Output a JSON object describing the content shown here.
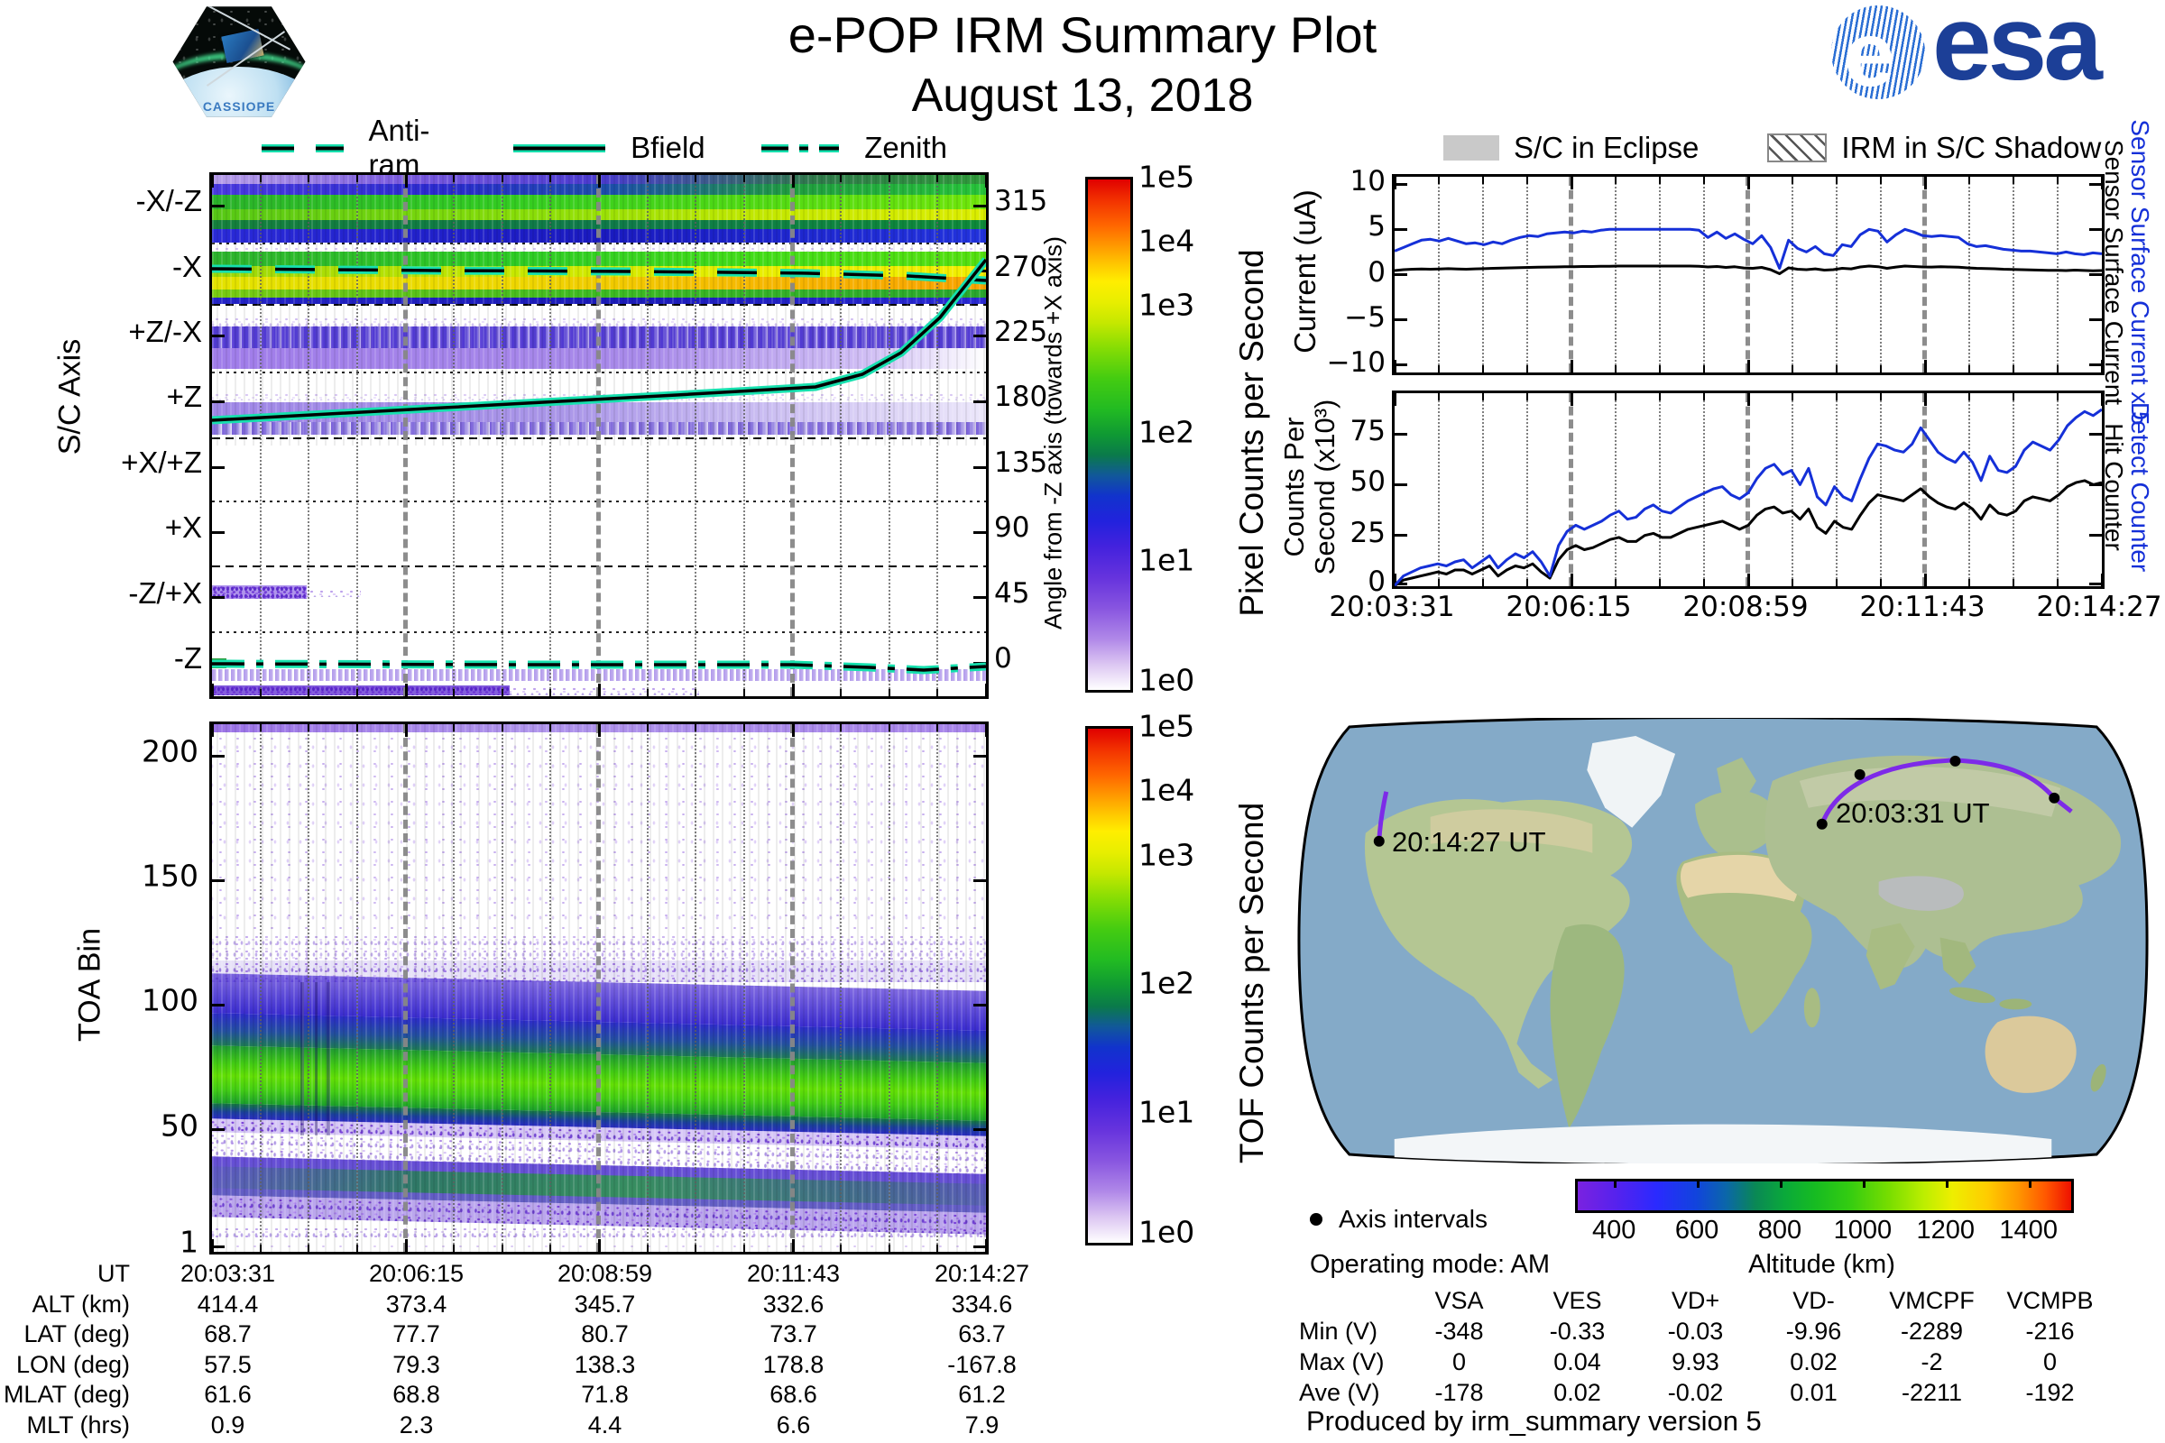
{
  "header": {
    "title_line1": "e-POP IRM Summary Plot",
    "title_line2": "August 13, 2018",
    "cassiope_label": "CASSIOPE",
    "esa_label": "esa"
  },
  "legend_left": {
    "anti_ram": "Anti-ram",
    "bfield": "Bfield",
    "zenith": "Zenith"
  },
  "legend_right": {
    "eclipse": "S/C in Eclipse",
    "shadow": "IRM in S/C Shadow"
  },
  "colors": {
    "accent_teal": "#16e0ae",
    "series_blue": "#1530d8",
    "series_black": "#000000",
    "track_purple": "#7d2ae8",
    "eclipse_gray": "#c9c9c9",
    "navy_esa": "#1c3f97"
  },
  "spec1": {
    "y_axis_label": "S/C Axis",
    "y_labels": [
      "-X/-Z",
      "-X",
      "+Z/-X",
      "+Z",
      "+X/+Z",
      "+X",
      "-Z/+X",
      "-Z"
    ],
    "angle_axis_label": "Angle from -Z axis (towards +X axis)",
    "angle_ticks": [
      "315",
      "270",
      "225",
      "180",
      "135",
      "90",
      "45",
      "0"
    ],
    "colorbar_label": "Pixel Counts per Second",
    "colorbar_ticks": [
      "1e5",
      "1e4",
      "1e3",
      "1e2",
      "1e1",
      "1e0"
    ]
  },
  "spec2": {
    "y_axis_label": "TOA Bin",
    "y_ticks": [
      "200",
      "150",
      "100",
      "50",
      "1"
    ],
    "colorbar_label": "TOF Counts per Second",
    "colorbar_ticks": [
      "1e5",
      "1e4",
      "1e3",
      "1e2",
      "1e1",
      "1e0"
    ]
  },
  "plots": {
    "current": {
      "ylabel": "Current (uA)",
      "yticks": [
        "10",
        "5",
        "0",
        "−5",
        "−10"
      ],
      "right_label_blue": "Sensor Surface Current x 5",
      "right_label_black": "Sensor Surface Current"
    },
    "counts": {
      "ylabel_line1": "Counts Per",
      "ylabel_line2": "Second (x10³)",
      "yticks": [
        "75",
        "50",
        "25",
        "0"
      ],
      "right_label_blue": "Detect Counter",
      "right_label_black": "Hit Counter"
    },
    "x_ticklabels": [
      "20:03:31",
      "20:06:15",
      "20:08:59",
      "20:11:43",
      "20:14:27"
    ]
  },
  "map": {
    "start_label": "20:03:31 UT",
    "end_label": "20:14:27 UT"
  },
  "below_map": {
    "axis_intervals": "Axis intervals",
    "operating_mode": "Operating mode: AM",
    "altitude_label": "Altitude (km)",
    "altitude_ticks": [
      "400",
      "600",
      "800",
      "1000",
      "1200",
      "1400"
    ]
  },
  "table_left": {
    "rows": [
      {
        "label": "UT",
        "values": [
          "20:03:31",
          "20:06:15",
          "20:08:59",
          "20:11:43",
          "20:14:27"
        ]
      },
      {
        "label": "ALT (km)",
        "values": [
          "414.4",
          "373.4",
          "345.7",
          "332.6",
          "334.6"
        ]
      },
      {
        "label": "LAT (deg)",
        "values": [
          "68.7",
          "77.7",
          "80.7",
          "73.7",
          "63.7"
        ]
      },
      {
        "label": "LON (deg)",
        "values": [
          "57.5",
          "79.3",
          "138.3",
          "178.8",
          "-167.8"
        ]
      },
      {
        "label": "MLAT (deg)",
        "values": [
          "61.6",
          "68.8",
          "71.8",
          "68.6",
          "61.2"
        ]
      },
      {
        "label": "MLT (hrs)",
        "values": [
          "0.9",
          "2.3",
          "4.4",
          "6.6",
          "7.9"
        ]
      }
    ]
  },
  "voltage_table": {
    "columns": [
      "VSA",
      "VES",
      "VD+",
      "VD-",
      "VMCPF",
      "VCMPB"
    ],
    "rows": [
      {
        "label": "Min (V)",
        "values": [
          "-348",
          "-0.33",
          "-0.03",
          "-9.96",
          "-2289",
          "-216"
        ]
      },
      {
        "label": "Max (V)",
        "values": [
          "0",
          "0.04",
          "9.93",
          "0.02",
          "-2",
          "0"
        ]
      },
      {
        "label": "Ave (V)",
        "values": [
          "-178",
          "0.02",
          "-0.02",
          "0.01",
          "-2211",
          "-192"
        ]
      }
    ]
  },
  "footer": {
    "produced_by": "Produced by irm_summary version 5"
  },
  "chart_data": [
    {
      "type": "line",
      "name": "sensor-surface-current",
      "ylabel": "Current (uA)",
      "ylim": [
        -10.8,
        10.8
      ],
      "yticks": [
        10,
        5,
        0,
        -5,
        -10
      ],
      "x_ticklabels": [
        "20:03:31",
        "20:06:15",
        "20:08:59",
        "20:11:43",
        "20:14:27"
      ],
      "grid": "vertical dotted minors every 1/16, heavy dashed at 1/4, 1/2, 3/4",
      "series": [
        {
          "name": "Sensor Surface Current",
          "color": "#000000",
          "values": [
            0.45,
            0.55,
            0.6,
            0.62,
            0.6,
            0.63,
            0.66,
            0.63,
            0.6,
            0.64,
            0.66,
            0.7,
            0.72,
            0.75,
            0.78,
            0.8,
            0.82,
            0.84,
            0.85,
            0.87,
            0.88,
            0.9,
            0.9,
            0.92,
            0.93,
            0.95,
            0.95,
            0.95,
            0.95,
            0.95,
            0.95,
            0.95,
            0.95,
            0.95,
            0.93,
            0.85,
            0.9,
            0.8,
            0.87,
            0.74,
            0.7,
            0.8,
            0.55,
            0.1,
            0.75,
            0.6,
            0.55,
            0.64,
            0.5,
            0.55,
            0.7,
            0.64,
            0.85,
            0.95,
            0.88,
            0.7,
            0.84,
            0.95,
            0.9,
            0.85,
            0.84,
            0.87,
            0.85,
            0.82,
            0.75,
            0.7,
            0.68,
            0.65,
            0.6,
            0.58,
            0.55,
            0.52,
            0.5,
            0.48,
            0.47,
            0.45,
            0.5,
            0.46,
            0.43,
            0.45
          ]
        },
        {
          "name": "Sensor Surface Current x 5",
          "color": "#1530d8",
          "values": [
            2.6,
            3.0,
            3.4,
            3.8,
            3.9,
            3.7,
            4.0,
            3.7,
            3.4,
            3.5,
            3.3,
            3.6,
            3.4,
            3.8,
            4.1,
            4.3,
            4.2,
            4.5,
            4.6,
            4.7,
            4.6,
            4.8,
            4.7,
            4.9,
            5.0,
            5.0,
            5.0,
            5.0,
            5.0,
            5.0,
            5.0,
            5.0,
            5.0,
            5.0,
            4.9,
            4.1,
            4.7,
            4.0,
            4.5,
            3.9,
            3.4,
            4.3,
            3.0,
            0.7,
            3.8,
            2.9,
            2.5,
            3.1,
            2.3,
            2.1,
            3.3,
            3.1,
            4.4,
            5.0,
            4.8,
            3.6,
            4.4,
            5.0,
            4.7,
            4.3,
            4.2,
            4.3,
            4.2,
            4.1,
            3.4,
            3.1,
            3.2,
            3.0,
            2.8,
            2.7,
            2.6,
            2.6,
            2.5,
            2.4,
            2.3,
            2.5,
            2.3,
            2.2,
            2.4,
            2.3
          ]
        }
      ]
    },
    {
      "type": "line",
      "name": "counters",
      "ylabel": "Counts Per Second (x10³)",
      "ylim": [
        0,
        95
      ],
      "yticks": [
        75,
        50,
        25,
        0
      ],
      "x_ticklabels": [
        "20:03:31",
        "20:06:15",
        "20:08:59",
        "20:11:43",
        "20:14:27"
      ],
      "series": [
        {
          "name": "Hit Counter",
          "color": "#000000",
          "values": [
            0.2,
            3,
            4,
            5,
            6,
            7,
            6,
            8,
            8,
            6,
            8,
            10,
            5,
            8,
            10,
            9,
            11,
            7,
            4,
            13,
            18,
            20,
            18,
            19,
            21,
            23,
            24,
            22,
            22,
            25,
            26,
            24,
            24,
            26,
            28,
            29,
            30,
            31,
            32,
            30,
            28,
            30,
            35,
            38,
            39,
            36,
            37,
            33,
            38,
            29,
            26,
            32,
            29,
            28,
            35,
            41,
            45,
            44,
            43,
            42,
            45,
            48,
            44,
            41,
            39,
            38,
            41,
            38,
            33,
            40,
            36,
            35,
            37,
            42,
            44,
            43,
            42,
            45,
            49,
            51,
            52,
            50,
            51
          ]
        },
        {
          "name": "Detect Counter",
          "color": "#1530d8",
          "values": [
            0.3,
            5,
            7,
            9,
            10,
            11,
            10,
            12,
            13,
            9,
            12,
            15,
            9,
            13,
            16,
            14,
            17,
            12,
            5,
            20,
            27,
            30,
            28,
            30,
            32,
            35,
            37,
            33,
            34,
            38,
            40,
            37,
            36,
            39,
            42,
            44,
            46,
            48,
            49,
            45,
            43,
            46,
            53,
            58,
            60,
            55,
            57,
            50,
            58,
            44,
            40,
            49,
            44,
            42,
            53,
            63,
            70,
            69,
            67,
            66,
            70,
            78,
            72,
            66,
            63,
            61,
            66,
            61,
            52,
            64,
            57,
            56,
            59,
            67,
            71,
            69,
            67,
            72,
            79,
            83,
            86,
            84,
            87
          ]
        }
      ]
    },
    {
      "type": "heatmap",
      "name": "sc-axis-pixel-counts",
      "title": "S/C Axis vs time, log pixel counts 1e0–1e5",
      "rows": [
        "-X/-Z",
        "-X",
        "+Z/-X",
        "+Z",
        "+X/+Z",
        "+X",
        "-Z/+X",
        "-Z"
      ],
      "angle_ticks": [
        315,
        270,
        225,
        180,
        135,
        90,
        45,
        0
      ],
      "bands_summary": [
        "-X/-Z: strong 1e2-1e4 (green/yellow) layered emission, blue edges",
        "-X: brightest 1e3-1e4 (yellow/orange) around anti-ram line",
        "+Z/-X: 1e1 purple/blue speckle band",
        "+Z: sparse purple with Bfield line rising across",
        "+X/+Z and +X: empty",
        "-Z/+X: faint purple patch at start only",
        "-Z: zenith line with purple speckle below, small green patch at start"
      ],
      "overlay_lines": {
        "anti_ram": [
          [
            0,
            104
          ],
          [
            0.3,
            106
          ],
          [
            0.55,
            107
          ],
          [
            0.77,
            109
          ],
          [
            0.9,
            112
          ],
          [
            1,
            117
          ]
        ],
        "bfield": [
          [
            0,
            272
          ],
          [
            0.15,
            265
          ],
          [
            0.3,
            258
          ],
          [
            0.45,
            251
          ],
          [
            0.6,
            244
          ],
          [
            0.7,
            239
          ],
          [
            0.78,
            235
          ],
          [
            0.84,
            221
          ],
          [
            0.89,
            197
          ],
          [
            0.94,
            158
          ],
          [
            1,
            94
          ]
        ],
        "zenith": [
          [
            0,
            542
          ],
          [
            0.4,
            543
          ],
          [
            0.75,
            543
          ],
          [
            0.85,
            546
          ],
          [
            0.92,
            549
          ],
          [
            1,
            545
          ]
        ]
      }
    },
    {
      "type": "heatmap",
      "name": "toa-bin-tof-counts",
      "title": "TOA Bin vs time, log TOF counts 1e0–1e5",
      "ylim": [
        1,
        212
      ],
      "bands_summary": [
        "bins 200-212: thin purple row ~1e1",
        "bins 120-200: sparse 1e0-1e1 purple speckle",
        "bins 55-100: main band, blue 1e1.5 rising to bright green ~1e3 core at bins 60-75",
        "bins 44-54: near-empty gap",
        "bins 24-43: secondary purple/blue band ~1e1-1e2 with faint green core",
        "bins 1-23: sparse purple speckle"
      ]
    },
    {
      "type": "colorbar",
      "name": "altitude-track-colorbar",
      "range_km": [
        300,
        1500
      ],
      "ticks": [
        400,
        600,
        800,
        1000,
        1200,
        1400
      ],
      "label": "Altitude (km)"
    }
  ]
}
